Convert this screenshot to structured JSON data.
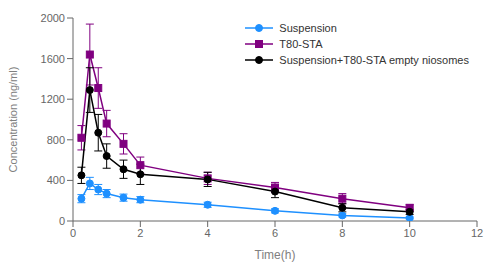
{
  "chart_data": {
    "type": "line",
    "xlabel": "Time(h)",
    "ylabel": "Concentration (ng/ml)",
    "x": [
      0.25,
      0.5,
      0.75,
      1.0,
      1.5,
      2.0,
      4.0,
      6.0,
      8.0,
      10.0
    ],
    "series": [
      {
        "name": "Suspension",
        "color": "#1e90ff",
        "marker": "circle",
        "values": [
          220,
          370,
          310,
          270,
          230,
          210,
          160,
          100,
          55,
          30
        ],
        "errors": [
          40,
          60,
          50,
          40,
          35,
          30,
          25,
          20,
          15,
          10
        ]
      },
      {
        "name": "T80-STA",
        "color": "#800080",
        "marker": "square",
        "values": [
          820,
          1640,
          1310,
          960,
          760,
          550,
          420,
          330,
          220,
          130
        ],
        "errors": [
          120,
          300,
          200,
          130,
          100,
          80,
          60,
          50,
          50,
          30
        ]
      },
      {
        "name": "Suspension+T80-STA empty niosomes",
        "color": "#000000",
        "marker": "circle",
        "values": [
          450,
          1290,
          870,
          640,
          510,
          460,
          410,
          290,
          130,
          90
        ],
        "errors": [
          80,
          220,
          180,
          120,
          90,
          100,
          70,
          60,
          40,
          25
        ]
      }
    ],
    "xlim": [
      0,
      12
    ],
    "ylim": [
      0,
      2000
    ],
    "xticks": [
      0,
      2,
      4,
      6,
      8,
      10,
      12
    ],
    "yticks": [
      0,
      400,
      800,
      1200,
      1600,
      2000
    ],
    "legend": "upper right",
    "grid": false
  }
}
